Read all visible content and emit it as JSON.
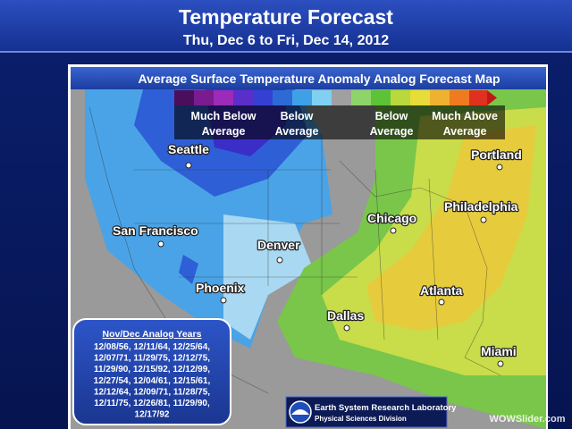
{
  "header": {
    "title": "Temperature Forecast",
    "subtitle": "Thu, Dec 6 to Fri, Dec 14, 2012"
  },
  "map": {
    "title": "Average Surface Temperature Anomaly Analog Forecast Map",
    "legend": [
      [
        "Much Below",
        "Average"
      ],
      [
        "Below",
        "Average"
      ],
      [
        "Below",
        "Average"
      ],
      [
        "Much Above",
        "Average"
      ]
    ],
    "cities": [
      "Seattle",
      "Portland",
      "Chicago",
      "Philadelphia",
      "San Francisco",
      "Denver",
      "Phoenix",
      "Atlanta",
      "Dallas",
      "Miami"
    ]
  },
  "analog_years": {
    "title": "Nov/Dec Analog Years",
    "lines": [
      "12/08/56, 12/11/64, 12/25/64,",
      "12/07/71, 11/29/75, 12/12/75,",
      "11/29/90, 12/15/92, 12/12/99,",
      "12/27/54, 12/04/61, 12/15/61,",
      "12/12/64, 12/09/71, 11/28/75,",
      "12/11/75, 12/26/81, 11/29/90,",
      "12/17/92"
    ]
  },
  "footer": {
    "org": "Earth System Research Laboratory",
    "division": "Physical Sciences Division"
  },
  "watermark": "WOWSlider.com"
}
